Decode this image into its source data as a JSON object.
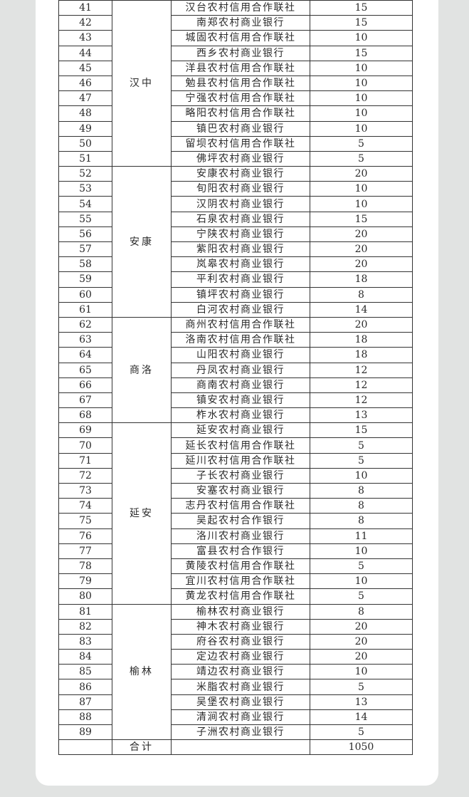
{
  "regions": [
    {
      "name": "汉中",
      "rows": [
        {
          "no": "41",
          "name": "汉台农村信用合作联社",
          "count": "15"
        },
        {
          "no": "42",
          "name": "南郑农村商业银行",
          "count": "15"
        },
        {
          "no": "43",
          "name": "城固农村信用合作联社",
          "count": "10"
        },
        {
          "no": "44",
          "name": "西乡农村商业银行",
          "count": "15"
        },
        {
          "no": "45",
          "name": "洋县农村信用合作联社",
          "count": "10"
        },
        {
          "no": "46",
          "name": "勉县农村信用合作联社",
          "count": "10"
        },
        {
          "no": "47",
          "name": "宁强农村信用合作联社",
          "count": "10"
        },
        {
          "no": "48",
          "name": "略阳农村信用合作联社",
          "count": "10"
        },
        {
          "no": "49",
          "name": "镇巴农村商业银行",
          "count": "10"
        },
        {
          "no": "50",
          "name": "留坝农村信用合作联社",
          "count": "5"
        },
        {
          "no": "51",
          "name": "佛坪农村商业银行",
          "count": "5"
        }
      ]
    },
    {
      "name": "安康",
      "rows": [
        {
          "no": "52",
          "name": "安康农村商业银行",
          "count": "20"
        },
        {
          "no": "53",
          "name": "旬阳农村商业银行",
          "count": "10"
        },
        {
          "no": "54",
          "name": "汉阴农村商业银行",
          "count": "10"
        },
        {
          "no": "55",
          "name": "石泉农村商业银行",
          "count": "15"
        },
        {
          "no": "56",
          "name": "宁陕农村商业银行",
          "count": "20"
        },
        {
          "no": "57",
          "name": "紫阳农村商业银行",
          "count": "20"
        },
        {
          "no": "58",
          "name": "岚皋农村商业银行",
          "count": "20"
        },
        {
          "no": "59",
          "name": "平利农村商业银行",
          "count": "18"
        },
        {
          "no": "60",
          "name": "镇坪农村商业银行",
          "count": "8"
        },
        {
          "no": "61",
          "name": "白河农村商业银行",
          "count": "14"
        }
      ]
    },
    {
      "name": "商洛",
      "rows": [
        {
          "no": "62",
          "name": "商州农村信用合作联社",
          "count": "20"
        },
        {
          "no": "63",
          "name": "洛南农村信用合作联社",
          "count": "18"
        },
        {
          "no": "64",
          "name": "山阳农村商业银行",
          "count": "18"
        },
        {
          "no": "65",
          "name": "丹凤农村商业银行",
          "count": "12"
        },
        {
          "no": "66",
          "name": "商南农村商业银行",
          "count": "12"
        },
        {
          "no": "67",
          "name": "镇安农村商业银行",
          "count": "12"
        },
        {
          "no": "68",
          "name": "柞水农村商业银行",
          "count": "13"
        }
      ]
    },
    {
      "name": "延安",
      "rows": [
        {
          "no": "69",
          "name": "延安农村商业银行",
          "count": "15"
        },
        {
          "no": "70",
          "name": "延长农村信用合作联社",
          "count": "5"
        },
        {
          "no": "71",
          "name": "延川农村信用合作联社",
          "count": "5"
        },
        {
          "no": "72",
          "name": "子长农村商业银行",
          "count": "10"
        },
        {
          "no": "73",
          "name": "安塞农村商业银行",
          "count": "8"
        },
        {
          "no": "74",
          "name": "志丹农村信用合作联社",
          "count": "8"
        },
        {
          "no": "75",
          "name": "吴起农村合作银行",
          "count": "8"
        },
        {
          "no": "76",
          "name": "洛川农村商业银行",
          "count": "11"
        },
        {
          "no": "77",
          "name": "富县农村合作银行",
          "count": "10"
        },
        {
          "no": "78",
          "name": "黄陵农村信用合作联社",
          "count": "5"
        },
        {
          "no": "79",
          "name": "宜川农村信用合作联社",
          "count": "10"
        },
        {
          "no": "80",
          "name": "黄龙农村信用合作联社",
          "count": "5"
        }
      ]
    },
    {
      "name": "榆林",
      "rows": [
        {
          "no": "81",
          "name": "榆林农村商业银行",
          "count": "8"
        },
        {
          "no": "82",
          "name": "神木农村商业银行",
          "count": "20"
        },
        {
          "no": "83",
          "name": "府谷农村商业银行",
          "count": "20"
        },
        {
          "no": "84",
          "name": "定边农村商业银行",
          "count": "20"
        },
        {
          "no": "85",
          "name": "靖边农村商业银行",
          "count": "10"
        },
        {
          "no": "86",
          "name": "米脂农村商业银行",
          "count": "5"
        },
        {
          "no": "87",
          "name": "吴堡农村商业银行",
          "count": "13"
        },
        {
          "no": "88",
          "name": "清涧农村商业银行",
          "count": "14"
        },
        {
          "no": "89",
          "name": "子洲农村商业银行",
          "count": "5"
        }
      ]
    }
  ],
  "total": {
    "label": "合计",
    "count": "1050"
  }
}
